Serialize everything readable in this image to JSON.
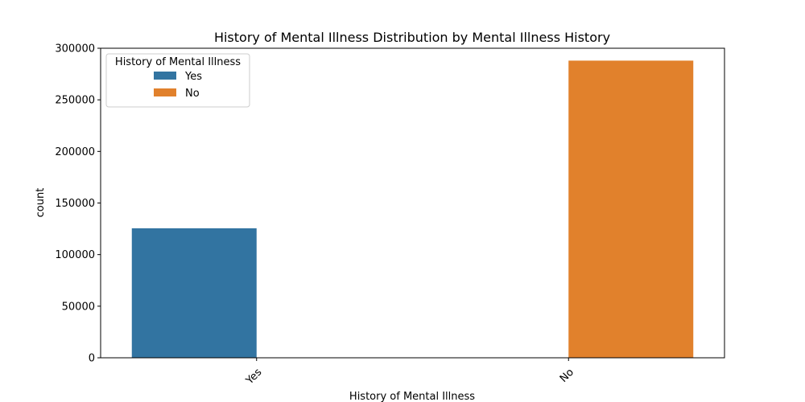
{
  "chart_data": {
    "type": "bar",
    "title": "History of Mental Illness Distribution by Mental Illness History",
    "xlabel": "History of Mental Illness",
    "ylabel": "count",
    "categories": [
      "Yes",
      "No"
    ],
    "series": [
      {
        "name": "Yes",
        "color": "#3274a1",
        "values": [
          125500,
          0
        ]
      },
      {
        "name": "No",
        "color": "#e1812c",
        "values": [
          0,
          288000
        ]
      }
    ],
    "ylim": [
      0,
      300000
    ],
    "yticks": [
      "0",
      "50000",
      "100000",
      "150000",
      "200000",
      "250000",
      "300000"
    ],
    "legend": {
      "title": "History of Mental Illness",
      "placement": "top-left"
    },
    "grid": false
  }
}
